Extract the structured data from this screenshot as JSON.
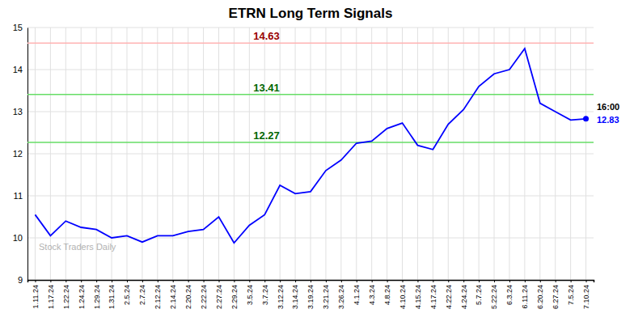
{
  "chart_data": {
    "type": "line",
    "title": "ETRN Long Term Signals",
    "categories": [
      "1.11.24",
      "1.17.24",
      "1.22.24",
      "1.24.24",
      "1.29.24",
      "1.31.24",
      "2.5.24",
      "2.7.24",
      "2.12.24",
      "2.14.24",
      "2.20.24",
      "2.22.24",
      "2.27.24",
      "2.29.24",
      "3.5.24",
      "3.7.24",
      "3.12.24",
      "3.14.24",
      "3.19.24",
      "3.21.24",
      "3.26.24",
      "4.1.24",
      "4.3.24",
      "4.8.24",
      "4.10.24",
      "4.15.24",
      "4.17.24",
      "4.22.24",
      "4.24.24",
      "5.7.24",
      "5.22.24",
      "6.3.24",
      "6.11.24",
      "6.20.24",
      "6.27.24",
      "7.5.24",
      "7.10.24"
    ],
    "values": [
      10.55,
      10.05,
      10.4,
      10.25,
      10.2,
      10.0,
      10.05,
      9.9,
      10.05,
      10.05,
      10.15,
      10.2,
      10.5,
      9.88,
      10.3,
      10.55,
      11.25,
      11.05,
      11.1,
      11.6,
      11.85,
      12.25,
      12.3,
      12.6,
      12.73,
      12.2,
      12.1,
      12.7,
      13.05,
      13.6,
      13.9,
      14.0,
      14.5,
      13.2,
      13.0,
      12.8,
      12.83
    ],
    "color": "blue",
    "reference_lines": [
      {
        "value": 14.63,
        "label": "14.63",
        "color": "#ffb3b3",
        "label_color": "#990000"
      },
      {
        "value": 13.41,
        "label": "13.41",
        "color": "#66dd66",
        "label_color": "#006600"
      },
      {
        "value": 12.27,
        "label": "12.27",
        "color": "#66dd66",
        "label_color": "#006600"
      }
    ],
    "annotations": [
      {
        "text": "16:00"
      },
      {
        "text": "12.83",
        "color": "blue"
      },
      {
        "text": "Stock Traders Daily"
      }
    ],
    "ylim": [
      9,
      15
    ],
    "yticks": [
      9,
      10,
      11,
      12,
      13,
      14,
      15
    ],
    "grid": true
  }
}
